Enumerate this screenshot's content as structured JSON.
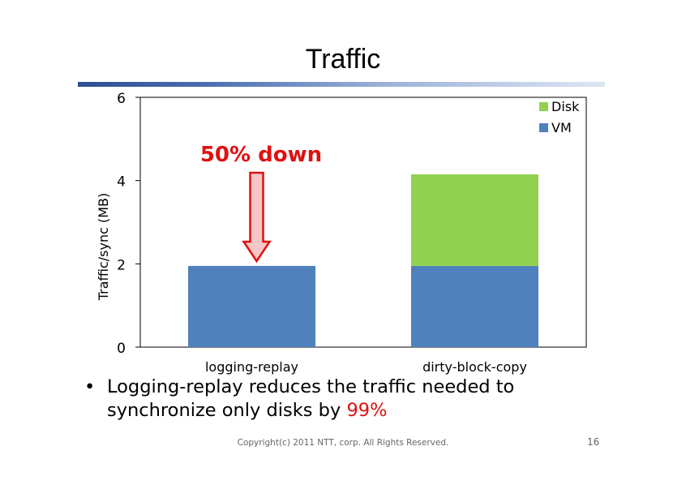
{
  "slide": {
    "title": "Traffic",
    "bullet_text": "Logging-replay reduces the traffic needed to synchronize only disks by ",
    "bullet_highlight": "99%",
    "footer": "Copyright(c) 2011 NTT, corp. All Rights Reserved.",
    "page_number": "16"
  },
  "colors": {
    "vm": "#4f81bd",
    "disk": "#92d050",
    "annotation": "#e01010",
    "arrow_fill": "#f7c6c6"
  },
  "chart_data": {
    "type": "bar",
    "stacked": true,
    "categories": [
      "logging-replay",
      "dirty-block-copy"
    ],
    "series": [
      {
        "name": "VM",
        "values": [
          1.95,
          1.95
        ]
      },
      {
        "name": "Disk",
        "values": [
          0,
          2.2
        ]
      }
    ],
    "ylabel": "Traffic/sync (MB)",
    "xlabel": "",
    "ylim": [
      0,
      6
    ],
    "yticks": [
      0,
      2,
      4,
      6
    ],
    "legend": "top-right",
    "grid": false,
    "annotation": {
      "text": "50% down",
      "category": "logging-replay"
    }
  }
}
